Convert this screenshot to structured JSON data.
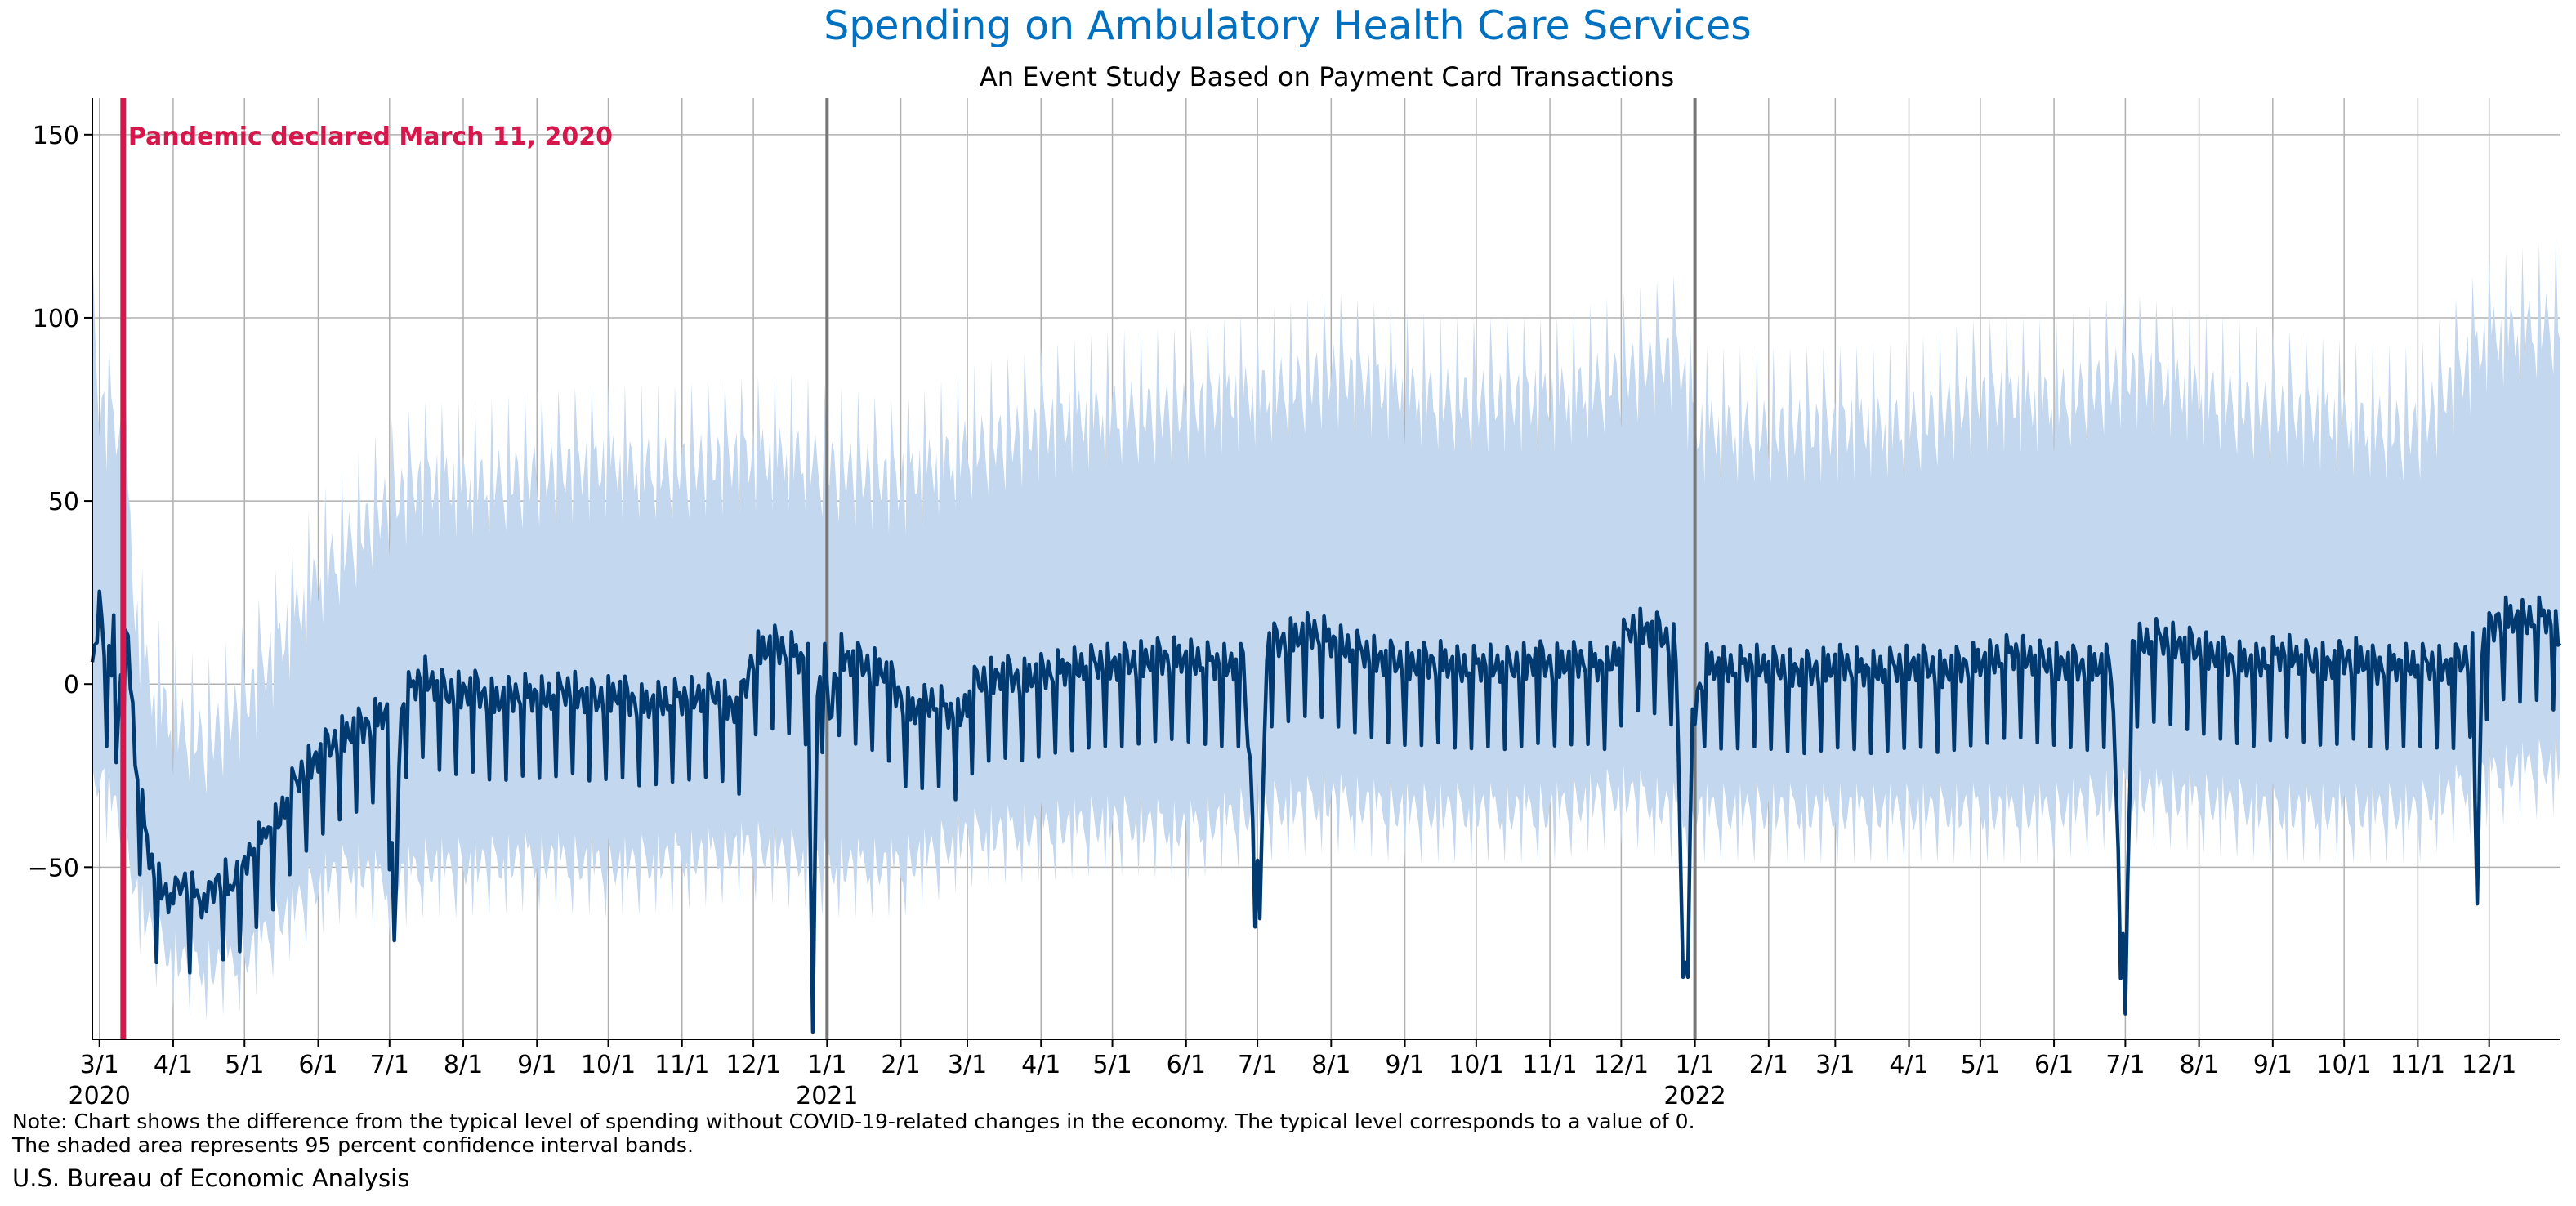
{
  "chart_data": {
    "type": "area",
    "title": "Spending on Ambulatory Health Care Services",
    "subtitle": "An Event Study Based on Payment Card Transactions",
    "xlabel": "",
    "ylabel": "",
    "x_range": [
      "2020-02-27",
      "2022-12-31"
    ],
    "ylim": [
      -97,
      160
    ],
    "yticks": [
      -50,
      0,
      50,
      100,
      150
    ],
    "grid": true,
    "colors": {
      "title": "#0070c0",
      "line": "#003a70",
      "band": "#c3d7ee",
      "event": "#d6174b",
      "year_line": "#777777",
      "grid": "#b0b0b0"
    },
    "xtick_labels": [
      {
        "date": "2020-03-01",
        "label": "3/1",
        "year": "2020"
      },
      {
        "date": "2020-04-01",
        "label": "4/1"
      },
      {
        "date": "2020-05-01",
        "label": "5/1"
      },
      {
        "date": "2020-06-01",
        "label": "6/1"
      },
      {
        "date": "2020-07-01",
        "label": "7/1"
      },
      {
        "date": "2020-08-01",
        "label": "8/1"
      },
      {
        "date": "2020-09-01",
        "label": "9/1"
      },
      {
        "date": "2020-10-01",
        "label": "10/1"
      },
      {
        "date": "2020-11-01",
        "label": "11/1"
      },
      {
        "date": "2020-12-01",
        "label": "12/1"
      },
      {
        "date": "2021-01-01",
        "label": "1/1",
        "year": "2021"
      },
      {
        "date": "2021-02-01",
        "label": "2/1"
      },
      {
        "date": "2021-03-01",
        "label": "3/1"
      },
      {
        "date": "2021-04-01",
        "label": "4/1"
      },
      {
        "date": "2021-05-01",
        "label": "5/1"
      },
      {
        "date": "2021-06-01",
        "label": "6/1"
      },
      {
        "date": "2021-07-01",
        "label": "7/1"
      },
      {
        "date": "2021-08-01",
        "label": "8/1"
      },
      {
        "date": "2021-09-01",
        "label": "9/1"
      },
      {
        "date": "2021-10-01",
        "label": "10/1"
      },
      {
        "date": "2021-11-01",
        "label": "11/1"
      },
      {
        "date": "2021-12-01",
        "label": "12/1"
      },
      {
        "date": "2022-01-01",
        "label": "1/1",
        "year": "2022"
      },
      {
        "date": "2022-02-01",
        "label": "2/1"
      },
      {
        "date": "2022-03-01",
        "label": "3/1"
      },
      {
        "date": "2022-04-01",
        "label": "4/1"
      },
      {
        "date": "2022-05-01",
        "label": "5/1"
      },
      {
        "date": "2022-06-01",
        "label": "6/1"
      },
      {
        "date": "2022-07-01",
        "label": "7/1"
      },
      {
        "date": "2022-08-01",
        "label": "8/1"
      },
      {
        "date": "2022-09-01",
        "label": "9/1"
      },
      {
        "date": "2022-10-01",
        "label": "10/1"
      },
      {
        "date": "2022-11-01",
        "label": "11/1"
      },
      {
        "date": "2022-12-01",
        "label": "12/1"
      }
    ],
    "event": {
      "date": "2020-03-11",
      "label": "Pandemic declared March 11, 2020"
    },
    "year_markers": [
      "2021-01-01",
      "2022-01-01"
    ],
    "series": [
      {
        "kind": "estimate",
        "points": [
          [
            "2020-02-27",
            0
          ],
          [
            "2020-03-01",
            23
          ],
          [
            "2020-03-04",
            5
          ],
          [
            "2020-03-06",
            4
          ],
          [
            "2020-03-07",
            15
          ],
          [
            "2020-03-08",
            -18
          ],
          [
            "2020-03-10",
            0
          ],
          [
            "2020-03-13",
            13
          ],
          [
            "2020-03-16",
            -20
          ],
          [
            "2020-03-20",
            -40
          ],
          [
            "2020-03-24",
            -53
          ],
          [
            "2020-03-28",
            -57
          ],
          [
            "2020-04-01",
            -60
          ],
          [
            "2020-04-05",
            -55
          ],
          [
            "2020-04-10",
            -58
          ],
          [
            "2020-04-15",
            -62
          ],
          [
            "2020-04-20",
            -52
          ],
          [
            "2020-04-25",
            -55
          ],
          [
            "2020-04-30",
            -50
          ],
          [
            "2020-05-05",
            -45
          ],
          [
            "2020-05-10",
            -42
          ],
          [
            "2020-05-15",
            -38
          ],
          [
            "2020-05-20",
            -30
          ],
          [
            "2020-05-25",
            -25
          ],
          [
            "2020-06-01",
            -20
          ],
          [
            "2020-06-10",
            -15
          ],
          [
            "2020-06-20",
            -12
          ],
          [
            "2020-06-30",
            -8
          ],
          [
            "2020-07-03",
            -70
          ],
          [
            "2020-07-06",
            -5
          ],
          [
            "2020-07-15",
            2
          ],
          [
            "2020-07-25",
            -3
          ],
          [
            "2020-08-05",
            -2
          ],
          [
            "2020-08-15",
            -5
          ],
          [
            "2020-08-25",
            -3
          ],
          [
            "2020-09-05",
            -4
          ],
          [
            "2020-09-15",
            -2
          ],
          [
            "2020-09-25",
            -5
          ],
          [
            "2020-10-05",
            -3
          ],
          [
            "2020-10-15",
            -6
          ],
          [
            "2020-10-25",
            -5
          ],
          [
            "2020-11-05",
            -4
          ],
          [
            "2020-11-15",
            -3
          ],
          [
            "2020-11-25",
            -8
          ],
          [
            "2020-12-01",
            8
          ],
          [
            "2020-12-10",
            10
          ],
          [
            "2020-12-18",
            8
          ],
          [
            "2020-12-24",
            5
          ],
          [
            "2020-12-26",
            -95
          ],
          [
            "2020-12-28",
            0
          ],
          [
            "2020-12-31",
            5
          ],
          [
            "2021-01-02",
            -10
          ],
          [
            "2021-01-06",
            8
          ],
          [
            "2021-01-15",
            5
          ],
          [
            "2021-01-25",
            3
          ],
          [
            "2021-02-05",
            -8
          ],
          [
            "2021-02-15",
            -5
          ],
          [
            "2021-02-25",
            -10
          ],
          [
            "2021-03-05",
            0
          ],
          [
            "2021-03-15",
            2
          ],
          [
            "2021-03-25",
            1
          ],
          [
            "2021-04-05",
            3
          ],
          [
            "2021-04-15",
            4
          ],
          [
            "2021-04-25",
            5
          ],
          [
            "2021-05-05",
            5
          ],
          [
            "2021-05-15",
            6
          ],
          [
            "2021-05-25",
            7
          ],
          [
            "2021-06-05",
            6
          ],
          [
            "2021-06-15",
            5
          ],
          [
            "2021-06-25",
            5
          ],
          [
            "2021-07-02",
            -64
          ],
          [
            "2021-07-05",
            10
          ],
          [
            "2021-07-15",
            12
          ],
          [
            "2021-07-25",
            14
          ],
          [
            "2021-08-05",
            10
          ],
          [
            "2021-08-15",
            8
          ],
          [
            "2021-08-25",
            6
          ],
          [
            "2021-09-05",
            5
          ],
          [
            "2021-09-15",
            6
          ],
          [
            "2021-09-25",
            4
          ],
          [
            "2021-10-05",
            5
          ],
          [
            "2021-10-15",
            4
          ],
          [
            "2021-10-25",
            6
          ],
          [
            "2021-11-05",
            5
          ],
          [
            "2021-11-15",
            6
          ],
          [
            "2021-11-25",
            4
          ],
          [
            "2021-12-05",
            15
          ],
          [
            "2021-12-15",
            14
          ],
          [
            "2021-12-24",
            10
          ],
          [
            "2021-12-27",
            -80
          ],
          [
            "2021-12-29",
            -80
          ],
          [
            "2021-12-31",
            -10
          ],
          [
            "2022-01-05",
            5
          ],
          [
            "2022-01-15",
            4
          ],
          [
            "2022-01-25",
            5
          ],
          [
            "2022-02-05",
            4
          ],
          [
            "2022-02-15",
            3
          ],
          [
            "2022-02-25",
            4
          ],
          [
            "2022-03-05",
            5
          ],
          [
            "2022-03-15",
            3
          ],
          [
            "2022-03-25",
            4
          ],
          [
            "2022-04-05",
            5
          ],
          [
            "2022-04-15",
            3
          ],
          [
            "2022-04-25",
            5
          ],
          [
            "2022-05-05",
            6
          ],
          [
            "2022-05-15",
            8
          ],
          [
            "2022-05-25",
            6
          ],
          [
            "2022-06-05",
            5
          ],
          [
            "2022-06-15",
            4
          ],
          [
            "2022-06-25",
            5
          ],
          [
            "2022-07-01",
            -90
          ],
          [
            "2022-07-04",
            10
          ],
          [
            "2022-07-15",
            12
          ],
          [
            "2022-07-25",
            10
          ],
          [
            "2022-08-05",
            8
          ],
          [
            "2022-08-15",
            6
          ],
          [
            "2022-08-25",
            5
          ],
          [
            "2022-09-05",
            8
          ],
          [
            "2022-09-15",
            6
          ],
          [
            "2022-09-25",
            5
          ],
          [
            "2022-10-05",
            7
          ],
          [
            "2022-10-15",
            4
          ],
          [
            "2022-10-25",
            5
          ],
          [
            "2022-11-05",
            5
          ],
          [
            "2022-11-15",
            4
          ],
          [
            "2022-11-24",
            8
          ],
          [
            "2022-11-26",
            -60
          ],
          [
            "2022-11-28",
            10
          ],
          [
            "2022-12-05",
            18
          ],
          [
            "2022-12-15",
            17
          ],
          [
            "2022-12-25",
            18
          ],
          [
            "2022-12-31",
            12
          ]
        ]
      },
      {
        "kind": "band_upper",
        "points": [
          [
            "2020-02-27",
            100
          ],
          [
            "2020-03-01",
            75
          ],
          [
            "2020-03-08",
            70
          ],
          [
            "2020-03-12",
            60
          ],
          [
            "2020-03-16",
            20
          ],
          [
            "2020-03-22",
            0
          ],
          [
            "2020-04-01",
            -10
          ],
          [
            "2020-04-15",
            -15
          ],
          [
            "2020-05-01",
            -5
          ],
          [
            "2020-05-15",
            10
          ],
          [
            "2020-06-01",
            30
          ],
          [
            "2020-06-15",
            40
          ],
          [
            "2020-07-01",
            50
          ],
          [
            "2020-07-15",
            55
          ],
          [
            "2020-08-01",
            55
          ],
          [
            "2020-09-01",
            58
          ],
          [
            "2020-10-01",
            60
          ],
          [
            "2020-11-01",
            60
          ],
          [
            "2020-12-01",
            62
          ],
          [
            "2020-12-20",
            63
          ],
          [
            "2021-01-01",
            60
          ],
          [
            "2021-02-01",
            55
          ],
          [
            "2021-03-01",
            65
          ],
          [
            "2021-04-01",
            70
          ],
          [
            "2021-05-01",
            75
          ],
          [
            "2021-06-01",
            75
          ],
          [
            "2021-07-01",
            80
          ],
          [
            "2021-08-01",
            85
          ],
          [
            "2021-09-01",
            80
          ],
          [
            "2021-10-01",
            78
          ],
          [
            "2021-11-01",
            78
          ],
          [
            "2021-12-01",
            85
          ],
          [
            "2021-12-25",
            90
          ],
          [
            "2022-01-01",
            70
          ],
          [
            "2022-02-01",
            70
          ],
          [
            "2022-03-01",
            70
          ],
          [
            "2022-04-01",
            72
          ],
          [
            "2022-05-01",
            78
          ],
          [
            "2022-06-01",
            78
          ],
          [
            "2022-07-01",
            85
          ],
          [
            "2022-08-01",
            80
          ],
          [
            "2022-09-01",
            75
          ],
          [
            "2022-10-01",
            72
          ],
          [
            "2022-11-01",
            70
          ],
          [
            "2022-12-01",
            95
          ],
          [
            "2022-12-31",
            100
          ]
        ]
      },
      {
        "kind": "band_lower",
        "points": [
          [
            "2020-02-27",
            -30
          ],
          [
            "2020-03-01",
            -25
          ],
          [
            "2020-03-08",
            -35
          ],
          [
            "2020-03-12",
            -45
          ],
          [
            "2020-03-20",
            -65
          ],
          [
            "2020-04-01",
            -75
          ],
          [
            "2020-04-15",
            -78
          ],
          [
            "2020-05-01",
            -75
          ],
          [
            "2020-05-15",
            -65
          ],
          [
            "2020-06-01",
            -55
          ],
          [
            "2020-06-15",
            -50
          ],
          [
            "2020-07-01",
            -55
          ],
          [
            "2020-07-15",
            -50
          ],
          [
            "2020-08-01",
            -50
          ],
          [
            "2020-09-01",
            -48
          ],
          [
            "2020-10-01",
            -50
          ],
          [
            "2020-11-01",
            -48
          ],
          [
            "2020-12-01",
            -45
          ],
          [
            "2020-12-20",
            -48
          ],
          [
            "2021-01-01",
            -50
          ],
          [
            "2021-02-01",
            -50
          ],
          [
            "2021-03-01",
            -42
          ],
          [
            "2021-04-01",
            -40
          ],
          [
            "2021-05-01",
            -38
          ],
          [
            "2021-06-01",
            -40
          ],
          [
            "2021-07-01",
            -35
          ],
          [
            "2021-08-01",
            -32
          ],
          [
            "2021-09-01",
            -35
          ],
          [
            "2021-10-01",
            -35
          ],
          [
            "2021-11-01",
            -35
          ],
          [
            "2021-12-01",
            -30
          ],
          [
            "2021-12-25",
            -35
          ],
          [
            "2022-01-01",
            -35
          ],
          [
            "2022-02-01",
            -35
          ],
          [
            "2022-03-01",
            -35
          ],
          [
            "2022-04-01",
            -35
          ],
          [
            "2022-05-01",
            -35
          ],
          [
            "2022-06-01",
            -35
          ],
          [
            "2022-07-01",
            -30
          ],
          [
            "2022-08-01",
            -32
          ],
          [
            "2022-09-01",
            -35
          ],
          [
            "2022-10-01",
            -35
          ],
          [
            "2022-11-01",
            -35
          ],
          [
            "2022-12-01",
            -25
          ],
          [
            "2022-12-31",
            -22
          ]
        ]
      }
    ]
  },
  "note_lines": [
    "Note: Chart shows the difference from the typical level of spending without COVID-19-related changes in the economy. The typical level corresponds to a value of 0.",
    "The shaded area represents 95 percent confidence interval bands."
  ],
  "source": "U.S. Bureau of Economic Analysis"
}
